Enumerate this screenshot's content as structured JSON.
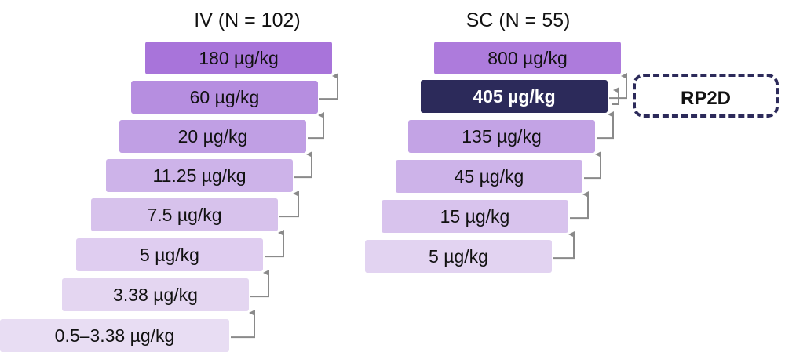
{
  "colors": {
    "shade_1": "#e6d9f2",
    "shade_2": "#dbc8ee",
    "shade_3": "#cfb6ea",
    "shade_4": "#c3a4e6",
    "shade_5": "#b78fe2",
    "shade_6": "#ab7bdd",
    "highlight": "#2c2a5a",
    "arrow": "#8a8a8a",
    "dash_border": "#2c2a5a"
  },
  "iv": {
    "heading": "IV (N = 102)",
    "steps": [
      {
        "label": "0.5–3.38 µg/kg",
        "color": "#e8ddf3"
      },
      {
        "label": "3.38 µg/kg",
        "color": "#e4d6f1"
      },
      {
        "label": "5 µg/kg",
        "color": "#dfcdf0"
      },
      {
        "label": "7.5 µg/kg",
        "color": "#d7c2ec"
      },
      {
        "label": "11.25 µg/kg",
        "color": "#cdb3e9"
      },
      {
        "label": "20 µg/kg",
        "color": "#c09fe4"
      },
      {
        "label": "60 µg/kg",
        "color": "#b68ee0"
      },
      {
        "label": "180 µg/kg",
        "color": "#a874da"
      }
    ]
  },
  "sc": {
    "heading": "SC (N = 55)",
    "steps": [
      {
        "label": "5 µg/kg",
        "color": "#e2d3f1",
        "emph": false
      },
      {
        "label": "15 µg/kg",
        "color": "#d8c3ed",
        "emph": false
      },
      {
        "label": "45 µg/kg",
        "color": "#cdb3e9",
        "emph": false
      },
      {
        "label": "135 µg/kg",
        "color": "#c3a3e5",
        "emph": false
      },
      {
        "label": "405 µg/kg",
        "color": "#2c2a5a",
        "emph": true
      },
      {
        "label": "800 µg/kg",
        "color": "#ad7bdc",
        "emph": false
      }
    ]
  },
  "callout": {
    "label": "RP2D"
  }
}
